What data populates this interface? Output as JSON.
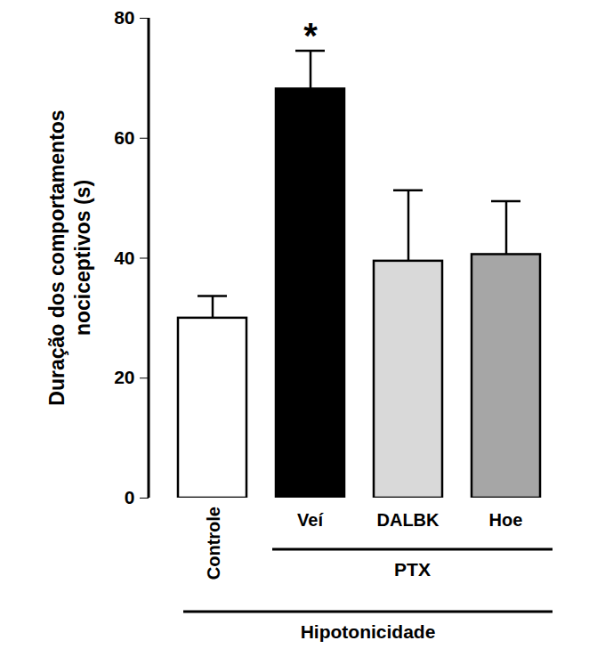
{
  "chart_data": {
    "type": "bar",
    "y_label": "Duração dos comportamentos nociceptivos (s)",
    "categories": [
      "Controle",
      "Veí",
      "DALBK",
      "Hoe"
    ],
    "values": [
      30,
      68.2,
      39.5,
      40.6
    ],
    "errors": [
      3.7,
      6.4,
      11.8,
      8.9
    ],
    "colors": [
      "#ffffff",
      "#000000",
      "#d9d9d9",
      "#a6a6a6"
    ],
    "ylim": [
      0,
      80
    ],
    "yticks": [
      0,
      20,
      40,
      60,
      80
    ],
    "grid": false,
    "annotations": [
      {
        "text": "*",
        "category": "Veí"
      }
    ],
    "groups": [
      {
        "label": "PTX",
        "categories": [
          "Veí",
          "DALBK",
          "Hoe"
        ]
      },
      {
        "label": "Hipotonicidade",
        "categories": [
          "Controle",
          "Veí",
          "DALBK",
          "Hoe"
        ]
      }
    ]
  }
}
